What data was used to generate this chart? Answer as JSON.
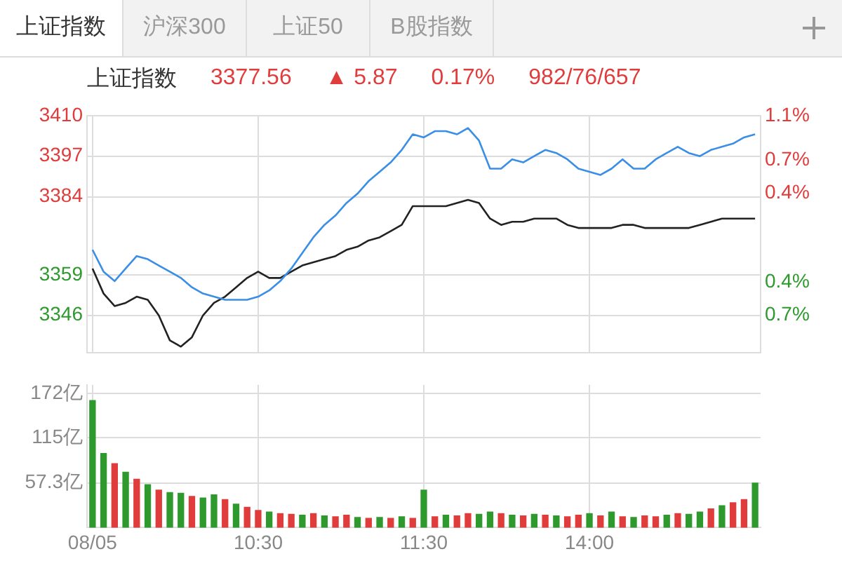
{
  "chart_data": [
    {
      "type": "other",
      "annotations": [
        "上证指数",
        "沪深300",
        "上证50",
        "B股指数"
      ]
    },
    {
      "type": "line",
      "title": "上证指数",
      "annotations": [
        "3377.56",
        "▲ 5.87",
        "0.17%",
        "982/76/657"
      ],
      "categories": [
        null,
        null,
        null,
        null,
        null,
        null,
        null,
        null,
        null,
        null,
        null,
        null,
        null,
        null,
        null,
        null,
        null,
        null,
        null,
        null,
        null,
        null,
        null,
        null,
        null,
        null,
        null,
        null,
        null,
        null,
        null,
        null,
        null,
        null,
        null,
        null,
        null,
        null,
        null,
        null,
        null,
        null,
        null,
        null,
        null,
        null,
        null,
        null,
        null,
        null,
        null,
        null,
        null,
        null,
        null,
        null,
        null,
        null,
        null,
        null,
        null
      ],
      "series": [
        {
          "color": "#3a8ee6",
          "values": [
            3367,
            3360,
            3357,
            3361,
            3365,
            3364,
            3362,
            3360,
            3358,
            3355,
            3353,
            3352,
            3351,
            3351,
            3351,
            3352,
            3354,
            3357,
            3361,
            3366,
            3371,
            3375,
            3378,
            3382,
            3385,
            3389,
            3392,
            3395,
            3399,
            3404,
            3403,
            3405,
            3405,
            3404,
            3406,
            3402,
            3393,
            3393,
            3396,
            3395,
            3397,
            3399,
            3398,
            3396,
            3393,
            3392,
            3391,
            3393,
            3396,
            3393,
            3393,
            3396,
            3398,
            3400,
            3398,
            3397,
            3399,
            3400,
            3401,
            3403,
            3404
          ]
        },
        {
          "color": "#222222",
          "values": [
            3361,
            3353,
            3349,
            3350,
            3352,
            3351,
            3346,
            3338,
            3336,
            3339,
            3346,
            3350,
            3352,
            3355,
            3358,
            3360,
            3358,
            3358,
            3360,
            3362,
            3363,
            3364,
            3365,
            3367,
            3368,
            3370,
            3371,
            3373,
            3375,
            3381,
            3381,
            3381,
            3381,
            3382,
            3383,
            3382,
            3377,
            3375,
            3376,
            3376,
            3377,
            3377,
            3377,
            3375,
            3374,
            3374,
            3374,
            3374,
            3375,
            3375,
            3374,
            3374,
            3374,
            3374,
            3374,
            3375,
            3376,
            3377,
            3377,
            3377,
            3377
          ]
        }
      ],
      "ylim": [
        3334,
        3410
      ],
      "yticks": [
        3346,
        3359,
        3384,
        3397,
        3410
      ],
      "y2lim": [
        -1.04,
        1.1
      ],
      "y2ticks": [
        {
          "value": -0.7,
          "label": "0.7%"
        },
        {
          "value": -0.4,
          "label": "0.4%"
        },
        {
          "value": 0.4,
          "label": "0.4%"
        },
        {
          "value": 0.7,
          "label": "0.7%"
        },
        {
          "value": 1.1,
          "label": "1.1%"
        }
      ],
      "grid": true,
      "marker": "none",
      "line_style": "solid",
      "tick_labels": "y"
    },
    {
      "type": "bar",
      "categories": [
        "08/05",
        null,
        null,
        null,
        null,
        null,
        null,
        null,
        null,
        null,
        null,
        null,
        null,
        null,
        null,
        "10:30",
        null,
        null,
        null,
        null,
        null,
        null,
        null,
        null,
        null,
        null,
        null,
        null,
        null,
        null,
        "11:30",
        null,
        null,
        null,
        null,
        null,
        null,
        null,
        null,
        null,
        null,
        null,
        null,
        null,
        null,
        "14:00",
        null,
        null,
        null,
        null,
        null,
        null,
        null,
        null,
        null,
        null,
        null,
        null,
        null,
        null,
        null
      ],
      "values": [
        163,
        95,
        82,
        71,
        62,
        55,
        48,
        45,
        44,
        40,
        38,
        42,
        36,
        30,
        26,
        22,
        20,
        18,
        17,
        16,
        18,
        15,
        14,
        16,
        13,
        12,
        13,
        12,
        14,
        12,
        48,
        14,
        16,
        15,
        18,
        17,
        20,
        18,
        16,
        15,
        17,
        16,
        15,
        14,
        16,
        18,
        15,
        20,
        14,
        13,
        15,
        14,
        16,
        18,
        17,
        20,
        24,
        28,
        32,
        36,
        57
      ],
      "colors": [
        "#2e9a2e",
        "#2e9a2e",
        "#e03c3c",
        "#2e9a2e",
        "#e03c3c",
        "#2e9a2e",
        "#e03c3c",
        "#2e9a2e",
        "#2e9a2e",
        "#e03c3c",
        "#2e9a2e",
        "#2e9a2e",
        "#e03c3c",
        "#2e9a2e",
        "#e03c3c",
        "#e03c3c",
        "#2e9a2e",
        "#e03c3c",
        "#e03c3c",
        "#2e9a2e",
        "#e03c3c",
        "#2e9a2e",
        "#e03c3c",
        "#e03c3c",
        "#2e9a2e",
        "#e03c3c",
        "#2e9a2e",
        "#e03c3c",
        "#2e9a2e",
        "#e03c3c",
        "#2e9a2e",
        "#e03c3c",
        "#2e9a2e",
        "#e03c3c",
        "#e03c3c",
        "#2e9a2e",
        "#2e9a2e",
        "#e03c3c",
        "#2e9a2e",
        "#e03c3c",
        "#2e9a2e",
        "#e03c3c",
        "#2e9a2e",
        "#e03c3c",
        "#e03c3c",
        "#2e9a2e",
        "#e03c3c",
        "#2e9a2e",
        "#e03c3c",
        "#2e9a2e",
        "#e03c3c",
        "#e03c3c",
        "#2e9a2e",
        "#e03c3c",
        "#2e9a2e",
        "#2e9a2e",
        "#e03c3c",
        "#2e9a2e",
        "#e03c3c",
        "#e03c3c",
        "#2e9a2e"
      ],
      "ylim": [
        0,
        183
      ],
      "yticks": [
        {
          "value": 57.3,
          "label": "57.3亿"
        },
        {
          "value": 115,
          "label": "115亿"
        },
        {
          "value": 172,
          "label": "172亿"
        }
      ],
      "grid": true
    }
  ]
}
